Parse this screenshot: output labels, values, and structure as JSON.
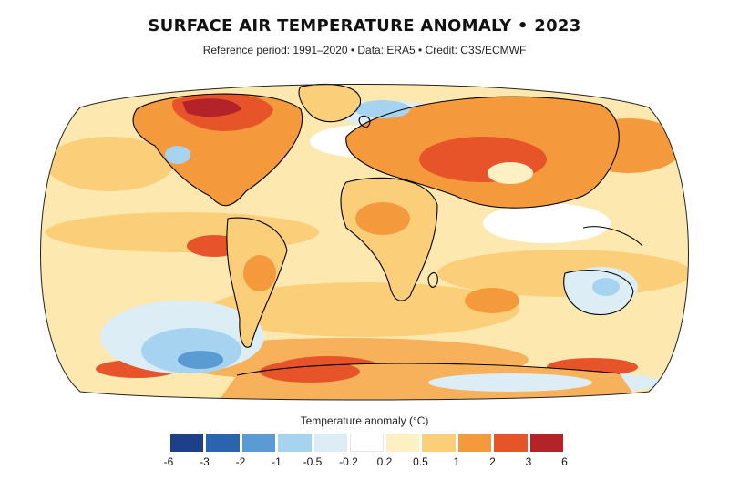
{
  "header": {
    "title": "SURFACE AIR TEMPERATURE ANOMALY • 2023",
    "subtitle": "Reference period: 1991–2020 • Data: ERA5 • Credit: C3S/ECMWF"
  },
  "legend": {
    "title": "Temperature anomaly (°C)",
    "ticks": [
      "-6",
      "-3",
      "-2",
      "-1",
      "-0.5",
      "-0.2",
      "0.2",
      "0.5",
      "1",
      "2",
      "3",
      "6"
    ],
    "colors": [
      "#1e3f8a",
      "#2b64ae",
      "#5a9bd4",
      "#a6d3ef",
      "#dcedf6",
      "#ffffff",
      "#fdf0c2",
      "#fbcf7a",
      "#f59a3c",
      "#e8542a",
      "#b5232a"
    ]
  },
  "palette": {
    "ocean_base": "#fde8ac",
    "land_base": "#fbd27f",
    "coastline": "#000000"
  }
}
